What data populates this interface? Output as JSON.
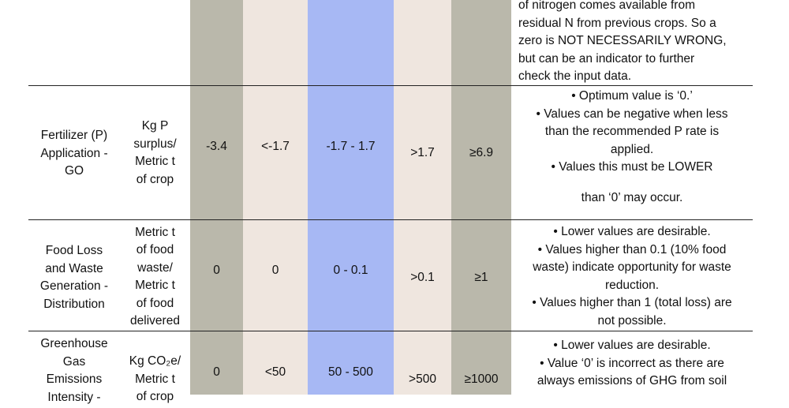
{
  "top_row": {
    "notes": [
      "of nitrogen comes available from",
      "residual N from previous crops. So a",
      "zero is NOT NECESSARILY WRONG,",
      "but can be an indicator to further",
      "check the input data."
    ]
  },
  "rows": [
    {
      "indicator": [
        "Fertilizer (P)",
        "Application -",
        "GO"
      ],
      "unit": [
        "Kg P",
        "surplus/",
        "Metric t",
        "of crop"
      ],
      "v1": "-3.4",
      "v2": "<-1.7",
      "v3": "-1.7 - 1.7",
      "v4": ">1.7",
      "v5": "≥6.9",
      "notes": [
        "• Optimum value is ‘0.’",
        "• Values can be negative when less",
        "than the recommended P rate is",
        "applied.",
        "• Values this must be LOWER",
        "than ‘0’ may occur."
      ]
    },
    {
      "indicator": [
        "Food Loss",
        "and Waste",
        "Generation -",
        "Distribution"
      ],
      "unit": [
        "Metric t",
        "of food",
        "waste/",
        "Metric t",
        "of food",
        "delivered"
      ],
      "v1": "0",
      "v2": "0",
      "v3": "0 - 0.1",
      "v4": ">0.1",
      "v5": "≥1",
      "notes": [
        "• Lower values are desirable.",
        "• Values higher than 0.1 (10% food",
        "waste) indicate opportunity for waste",
        "reduction.",
        "• Values higher than 1 (total loss) are",
        "not possible."
      ]
    },
    {
      "indicator": [
        "Greenhouse",
        "Gas",
        "Emissions",
        "Intensity -"
      ],
      "unit": [
        "Kg CO₂e/",
        "Metric t",
        "of crop"
      ],
      "v1": "0",
      "v2": "<50",
      "v3": "50 - 500",
      "v4": ">500",
      "v5": "≥1000",
      "notes": [
        "• Lower values are desirable.",
        "• Value ‘0’ is incorrect as there are",
        "always emissions of GHG from soil"
      ]
    }
  ]
}
